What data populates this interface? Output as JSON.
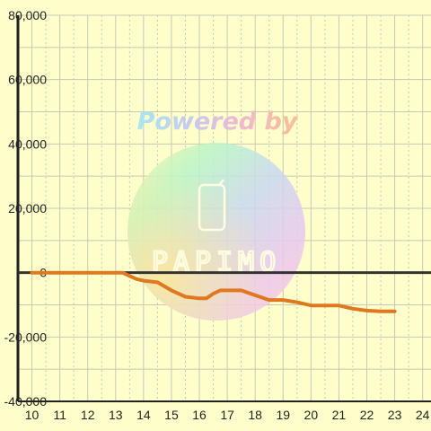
{
  "chart_data": {
    "type": "line",
    "x": [
      10,
      10.5,
      11,
      11.5,
      12,
      12.5,
      13,
      13.25,
      13.5,
      13.75,
      14,
      14.5,
      15,
      15.5,
      16,
      16.25,
      16.5,
      16.75,
      17,
      17.5,
      18,
      18.5,
      19,
      19.5,
      20,
      20.5,
      21,
      21.5,
      22,
      22.5,
      23
    ],
    "series": [
      {
        "values": [
          0,
          0,
          0,
          0,
          0,
          0,
          0,
          0,
          -1000,
          -2000,
          -2500,
          -3000,
          -5500,
          -7500,
          -8000,
          -8000,
          -6500,
          -5500,
          -5500,
          -5500,
          -7000,
          -8500,
          -8500,
          -9200,
          -10200,
          -10200,
          -10200,
          -11200,
          -11800,
          -12000,
          -12000
        ],
        "color": "#e07820"
      }
    ],
    "xlim": [
      9.5,
      24.3
    ],
    "ylim": [
      -40000,
      80000
    ],
    "xticks": [
      10,
      11,
      12,
      13,
      14,
      15,
      16,
      17,
      18,
      19,
      20,
      21,
      22,
      23,
      24
    ],
    "yticks": [
      -40000,
      -20000,
      0,
      20000,
      40000,
      60000,
      80000
    ],
    "ytick_labels": [
      "-40,000",
      "-20,000",
      "0",
      "20,000",
      "40,000",
      "60,000",
      "80,000"
    ],
    "grid": true,
    "legend": "none"
  },
  "watermark": {
    "text": "Powered by",
    "brand": "PAPIMO"
  },
  "colors": {
    "background": "#ffffcc",
    "grid": "#c8c8b4",
    "axis": "#222222",
    "zero_line": "#333333"
  }
}
